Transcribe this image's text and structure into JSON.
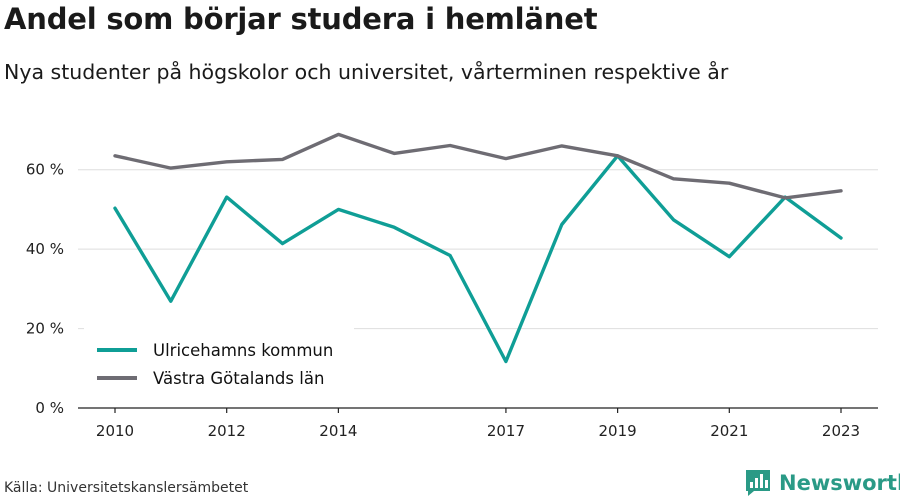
{
  "chart_data": {
    "type": "line",
    "title": "Andel som börjar studera i hemlänet",
    "subtitle": "Nya studenter på högskolor och universitet, vårterminen respektive år",
    "source": "Källa: Universitetskanslersämbetet",
    "x": [
      2010,
      2011,
      2012,
      2013,
      2014,
      2015,
      2016,
      2017,
      2018,
      2019,
      2020,
      2021,
      2022,
      2023
    ],
    "x_tick_labels": [
      "2010",
      "2012",
      "2014",
      "2017",
      "2019",
      "2021",
      "2023"
    ],
    "y_tick_labels": [
      "0 %",
      "20 %",
      "40 %",
      "60 %"
    ],
    "ylim": [
      0,
      70
    ],
    "grid": true,
    "legend_position": "bottom-left",
    "series": [
      {
        "name": "Ulricehamns kommun",
        "color": "#0f9e96",
        "values": [
          50.3,
          26.9,
          53.1,
          41.4,
          50.0,
          45.5,
          38.4,
          11.7,
          46.2,
          63.5,
          47.4,
          38.1,
          53.1,
          42.8
        ]
      },
      {
        "name": "Västra Götalands län",
        "color": "#6e6c73",
        "values": [
          63.5,
          60.4,
          62.0,
          62.6,
          68.9,
          64.1,
          66.1,
          62.8,
          66.0,
          63.5,
          57.7,
          56.6,
          52.9,
          54.7
        ]
      }
    ]
  },
  "brand": {
    "name": "Newsworthy",
    "icon": "bar-chart-logo-icon",
    "color": "#2a9a86"
  }
}
